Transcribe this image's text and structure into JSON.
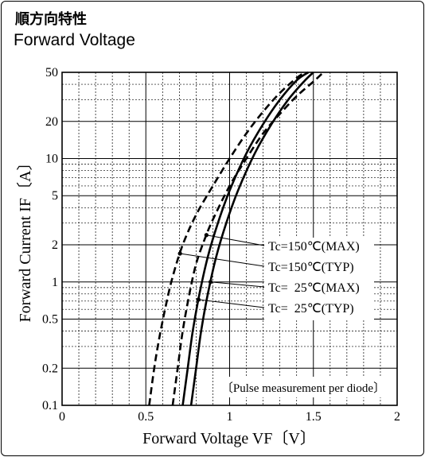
{
  "title_jp": "順方向特性",
  "title_en": "Forward Voltage",
  "chart_data": {
    "type": "line",
    "xlabel": "Forward Voltage  VF〔V〕",
    "ylabel": "Forward Current  IF〔A〕",
    "xlim": [
      0,
      2
    ],
    "ylim": [
      0.1,
      50
    ],
    "yscale": "log",
    "grid": true,
    "xticks": [
      "0",
      "0.5",
      "1",
      "1.5",
      "2"
    ],
    "xtick_values": [
      0,
      0.5,
      1,
      1.5,
      2
    ],
    "yticks": [
      "0.1",
      "0.2",
      "0.5",
      "1",
      "2",
      "5",
      "10",
      "20",
      "50"
    ],
    "ytick_values": [
      0.1,
      0.2,
      0.5,
      1,
      2,
      5,
      10,
      20,
      50
    ],
    "annotation": "〔Pulse measurement per diode〕",
    "series": [
      {
        "name": "Tc=150℃(MAX)",
        "style": "dashed",
        "x": [
          0.66,
          0.69,
          0.72,
          0.76,
          0.8,
          0.85,
          0.9,
          1.0,
          1.1,
          1.2,
          1.3,
          1.4,
          1.5,
          1.56
        ],
        "y": [
          0.1,
          0.2,
          0.4,
          0.8,
          1.4,
          2.2,
          3.2,
          6,
          10,
          16,
          23,
          32,
          42,
          50
        ]
      },
      {
        "name": "Tc=150℃(TYP)",
        "style": "dashed",
        "x": [
          0.52,
          0.55,
          0.58,
          0.62,
          0.66,
          0.72,
          0.8,
          0.9,
          1.0,
          1.1,
          1.2,
          1.3,
          1.4,
          1.45
        ],
        "y": [
          0.1,
          0.2,
          0.35,
          0.65,
          1.1,
          2,
          3.5,
          6,
          10,
          16,
          24,
          34,
          45,
          50
        ]
      },
      {
        "name": "Tc=  25℃(MAX)",
        "style": "solid",
        "x": [
          0.77,
          0.8,
          0.83,
          0.87,
          0.92,
          0.98,
          1.05,
          1.15,
          1.25,
          1.35,
          1.45,
          1.5
        ],
        "y": [
          0.1,
          0.2,
          0.4,
          0.8,
          1.6,
          3,
          5.5,
          11,
          19,
          30,
          43,
          50
        ]
      },
      {
        "name": "Tc=  25℃(TYP)",
        "style": "solid",
        "x": [
          0.72,
          0.75,
          0.78,
          0.82,
          0.87,
          0.93,
          1.0,
          1.1,
          1.2,
          1.3,
          1.4,
          1.47
        ],
        "y": [
          0.1,
          0.2,
          0.4,
          0.8,
          1.6,
          3,
          5.5,
          11,
          19,
          30,
          43,
          50
        ]
      }
    ]
  }
}
